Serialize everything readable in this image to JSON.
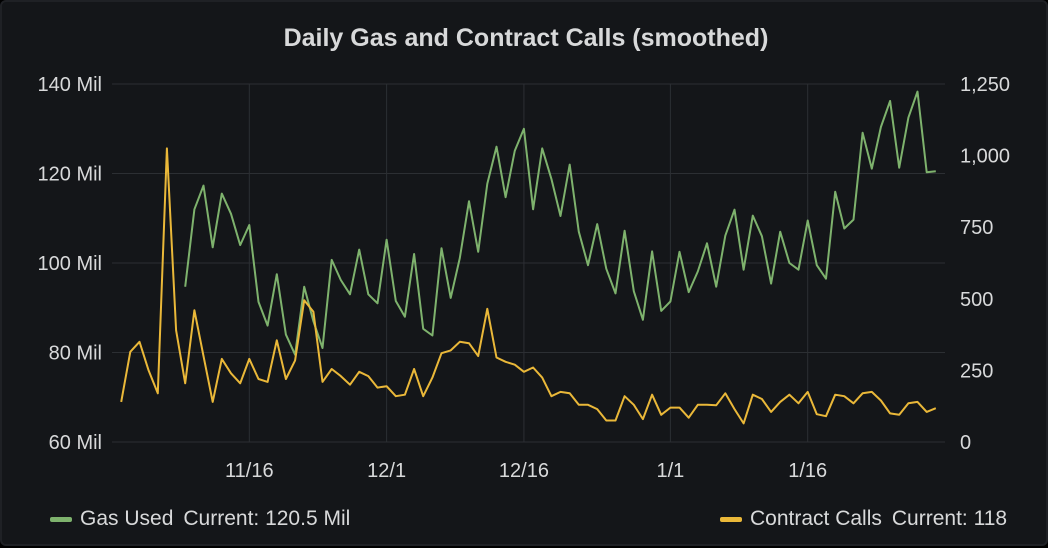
{
  "panel": {
    "title": "Daily Gas and Contract Calls (smoothed)"
  },
  "legend": [
    {
      "name": "Gas Used",
      "current_label": "Current:",
      "current_value": "120.5 Mil",
      "color": "#7eb26d"
    },
    {
      "name": "Contract Calls",
      "current_label": "Current:",
      "current_value": "118",
      "color": "#eab839"
    }
  ],
  "chart_data": {
    "type": "line",
    "title": "Daily Gas and Contract Calls (smoothed)",
    "x_ticks": [
      "11/16",
      "12/1",
      "12/16",
      "1/1",
      "1/16"
    ],
    "y_left": {
      "ticks": [
        "60 Mil",
        "80 Mil",
        "100 Mil",
        "120 Mil",
        "140 Mil"
      ],
      "range": [
        60,
        140
      ]
    },
    "y_right": {
      "ticks": [
        "0",
        "250",
        "500",
        "750",
        "1,000",
        "1,250"
      ],
      "range": [
        0,
        1250
      ]
    },
    "grid": true,
    "series": [
      {
        "name": "Gas Used",
        "axis": "left",
        "color": "#7eb26d",
        "values": [
          null,
          null,
          null,
          null,
          null,
          null,
          null,
          94.7,
          112,
          117.3,
          103.5,
          115.5,
          111,
          104,
          108.5,
          91.3,
          86,
          97.5,
          84,
          79.5,
          94.7,
          87,
          81,
          100.7,
          96.2,
          93,
          103,
          93,
          91,
          105.2,
          91.5,
          88,
          102,
          85.3,
          83.8,
          103.3,
          92.2,
          101.1,
          113.8,
          102.5,
          117.7,
          126,
          114.7,
          125.1,
          130,
          112,
          125.6,
          118.8,
          110.5,
          122,
          107,
          99.5,
          108.7,
          98.7,
          93.2,
          107.2,
          93.7,
          87.3,
          102.6,
          89.3,
          91.4,
          102.5,
          93.5,
          98.1,
          104.4,
          94.7,
          106.1,
          111.9,
          98.5,
          110.6,
          106,
          95.4,
          107,
          100,
          98.5,
          109.5,
          99.5,
          96.5,
          115.9,
          107.7,
          109.7,
          129.1,
          121.1,
          130.4,
          136.2,
          121.3,
          132.5,
          138.3,
          120.3,
          120.5
        ]
      },
      {
        "name": "Contract Calls",
        "axis": "right",
        "color": "#eab839",
        "values": [
          140,
          315,
          350,
          250,
          170,
          1025,
          390,
          205,
          460,
          300,
          140,
          290,
          240,
          205,
          290,
          220,
          210,
          355,
          220,
          285,
          495,
          455,
          210,
          255,
          230,
          200,
          245,
          230,
          190,
          195,
          160,
          165,
          255,
          160,
          225,
          310,
          320,
          350,
          345,
          300,
          465,
          295,
          280,
          270,
          245,
          260,
          225,
          160,
          175,
          170,
          130,
          130,
          115,
          75,
          75,
          160,
          130,
          80,
          165,
          95,
          120,
          120,
          85,
          130,
          130,
          128,
          170,
          115,
          65,
          165,
          150,
          105,
          140,
          165,
          135,
          175,
          97,
          90,
          165,
          160,
          135,
          170,
          175,
          145,
          100,
          95,
          135,
          140,
          105,
          118
        ]
      }
    ]
  }
}
